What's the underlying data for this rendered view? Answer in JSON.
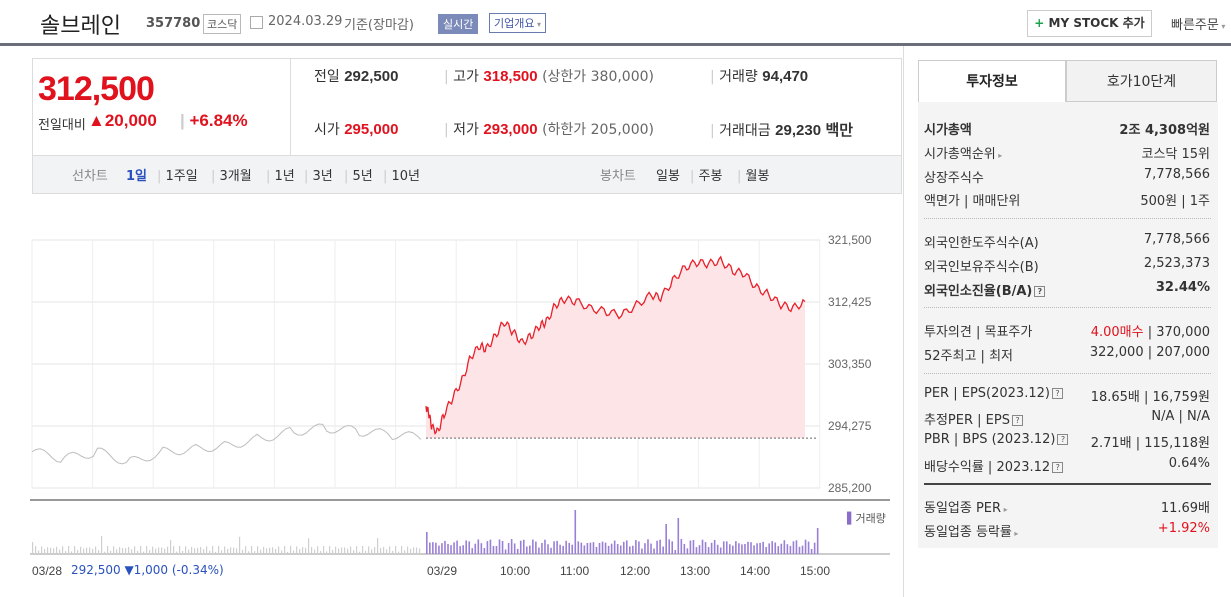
{
  "header": {
    "company": "솔브레인",
    "code": "357780",
    "market": "코스닥",
    "date": "2024.03.29",
    "basis": "기준(장마감)",
    "realtime": "실시간",
    "overview": "기업개요",
    "mystock": "MY STOCK 추가",
    "quick_order": "빠른주문"
  },
  "price": {
    "current": "312,500",
    "change_label": "전일대비",
    "change_value": "20,000",
    "change_pct": "+6.84%",
    "prev_label": "전일",
    "prev": "292,500",
    "high_label": "고가",
    "high": "318,500",
    "upper_limit": "(상한가 380,000)",
    "volume_label": "거래량",
    "volume": "94,470",
    "open_label": "시가",
    "open": "295,000",
    "low_label": "저가",
    "low": "293,000",
    "lower_limit": "(하한가 205,000)",
    "amount_label": "거래대금",
    "amount": "29,230",
    "amount_unit": "백만"
  },
  "tabs": {
    "line_label": "선차트",
    "periods": [
      "1일",
      "1주일",
      "3개월",
      "1년",
      "3년",
      "5년",
      "10년"
    ],
    "candle_label": "봉차트",
    "candles": [
      "일봉",
      "주봉",
      "월봉"
    ]
  },
  "chart_data": {
    "type": "line",
    "y_ticks": [
      "321,500",
      "312,425",
      "303,350",
      "294,275",
      "285,200"
    ],
    "ylim": [
      285200,
      321500
    ],
    "x_ticks": [
      "03/28",
      "03/29",
      "10:00",
      "11:00",
      "12:00",
      "13:00",
      "14:00",
      "15:00"
    ],
    "prev_close": 292500,
    "prev_day_summary": {
      "date": "03/28",
      "close": "292,500",
      "change": "▼1,000",
      "pct": "(-0.34%)"
    },
    "volume_legend": "거래량",
    "today": [
      [
        9.0,
        297200
      ],
      [
        9.05,
        296000
      ],
      [
        9.1,
        294000
      ],
      [
        9.2,
        293500
      ],
      [
        9.3,
        296000
      ],
      [
        9.45,
        298500
      ],
      [
        9.6,
        301000
      ],
      [
        9.75,
        304500
      ],
      [
        9.9,
        306000
      ],
      [
        10.0,
        305500
      ],
      [
        10.15,
        307500
      ],
      [
        10.3,
        309500
      ],
      [
        10.45,
        308000
      ],
      [
        10.6,
        306500
      ],
      [
        10.75,
        307500
      ],
      [
        10.9,
        309000
      ],
      [
        11.0,
        309500
      ],
      [
        11.15,
        312000
      ],
      [
        11.3,
        312800
      ],
      [
        11.5,
        312500
      ],
      [
        11.75,
        311500
      ],
      [
        12.0,
        311000
      ],
      [
        12.25,
        310500
      ],
      [
        12.5,
        312000
      ],
      [
        12.75,
        313500
      ],
      [
        12.9,
        313000
      ],
      [
        13.1,
        315500
      ],
      [
        13.3,
        317500
      ],
      [
        13.5,
        318200
      ],
      [
        13.7,
        318000
      ],
      [
        13.9,
        318500
      ],
      [
        14.1,
        317000
      ],
      [
        14.3,
        316500
      ],
      [
        14.5,
        314500
      ],
      [
        14.7,
        313500
      ],
      [
        14.9,
        312000
      ],
      [
        15.1,
        311500
      ],
      [
        15.3,
        312500
      ]
    ],
    "yesterday": [
      [
        0,
        290500
      ],
      [
        0.1,
        289500
      ],
      [
        0.2,
        290500
      ],
      [
        0.3,
        289000
      ],
      [
        0.4,
        290500
      ],
      [
        0.5,
        291000
      ],
      [
        0.6,
        291500
      ],
      [
        0.7,
        292500
      ],
      [
        0.8,
        293500
      ],
      [
        0.9,
        294000
      ],
      [
        1.0,
        293500
      ],
      [
        1.1,
        293000
      ],
      [
        1.2,
        292500
      ]
    ]
  },
  "invest": {
    "tab1": "투자정보",
    "tab2": "호가10단계",
    "rows1": [
      {
        "label": "시가총액",
        "value": "2조 4,308억원"
      },
      {
        "label": "시가총액순위",
        "value": "코스닥 15위"
      },
      {
        "label": "상장주식수",
        "value": "7,778,566"
      },
      {
        "label": "액면가 | 매매단위",
        "value": "500원 | 1주"
      }
    ],
    "rows2": [
      {
        "label": "외국인한도주식수(A)",
        "value": "7,778,566"
      },
      {
        "label": "외국인보유주식수(B)",
        "value": "2,523,373"
      },
      {
        "label": "외국인소진율(B/A)",
        "value": "32.44%"
      }
    ],
    "rows3": [
      {
        "label": "투자의견 | 목표주가",
        "value_red": "4.00매수",
        "value": " | 370,000"
      },
      {
        "label": "52주최고 | 최저",
        "value": "322,000 | 207,000"
      }
    ],
    "rows4": [
      {
        "label": "PER | EPS(2023.12)",
        "value": "18.65배 | 16,759원"
      },
      {
        "label": "추정PER | EPS",
        "value": "N/A | N/A"
      },
      {
        "label": "PBR | BPS (2023.12)",
        "value": "2.71배 | 115,118원"
      },
      {
        "label": "배당수익률 | 2023.12",
        "value": "0.64%"
      }
    ],
    "rows5": [
      {
        "label": "동일업종 PER",
        "value": "11.69배"
      },
      {
        "label": "동일업종 등락률",
        "value": "+1.92%"
      }
    ]
  }
}
